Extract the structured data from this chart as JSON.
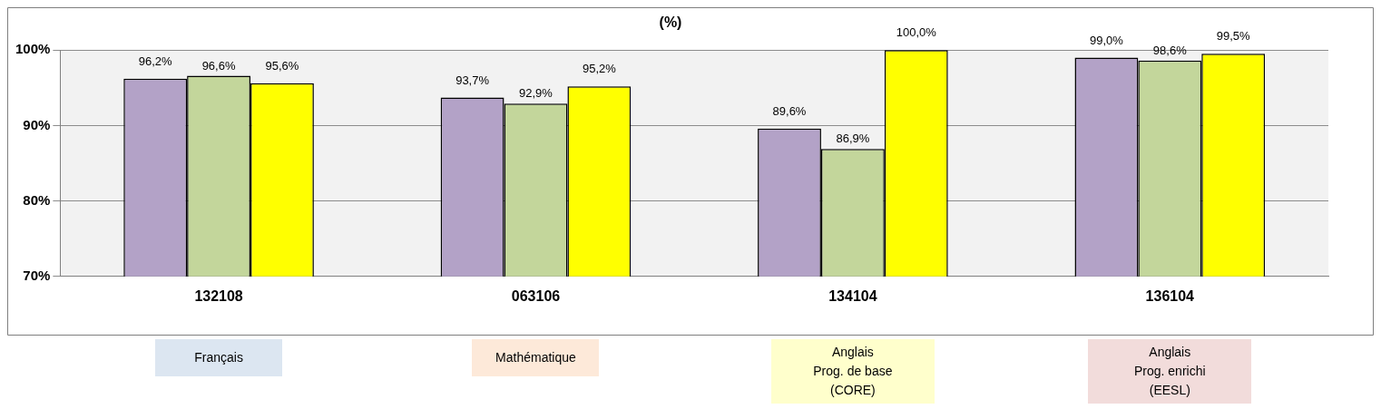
{
  "chart_data": {
    "type": "bar",
    "title": "(%)",
    "categories": [
      "132108",
      "063106",
      "134104",
      "136104"
    ],
    "series": [
      {
        "color": "#b3a2c7",
        "values": [
          96.2,
          93.7,
          89.6,
          99.0
        ],
        "value_labels": [
          "96,2%",
          "93,7%",
          "89,6%",
          "99,0%"
        ]
      },
      {
        "color": "#c3d69b",
        "values": [
          96.6,
          92.9,
          86.9,
          98.6
        ],
        "value_labels": [
          "96,6%",
          "92,9%",
          "86,9%",
          "98,6%"
        ]
      },
      {
        "color": "#ffff00",
        "values": [
          95.6,
          95.2,
          100.0,
          99.5
        ],
        "value_labels": [
          "95,6%",
          "95,2%",
          "100,0%",
          "99,5%"
        ]
      }
    ],
    "ylim": [
      70,
      100
    ],
    "yticks": [
      {
        "value": 70,
        "label": "70%"
      },
      {
        "value": 80,
        "label": "80%"
      },
      {
        "value": 90,
        "label": "90%"
      },
      {
        "value": 100,
        "label": "100%"
      }
    ],
    "grid": "y",
    "legend": false,
    "annotations": [
      "Français",
      "Mathématique",
      "Anglais\nProg. de base\n(CORE)",
      "Anglais\nProg. enrichi\n(EESL)"
    ]
  }
}
